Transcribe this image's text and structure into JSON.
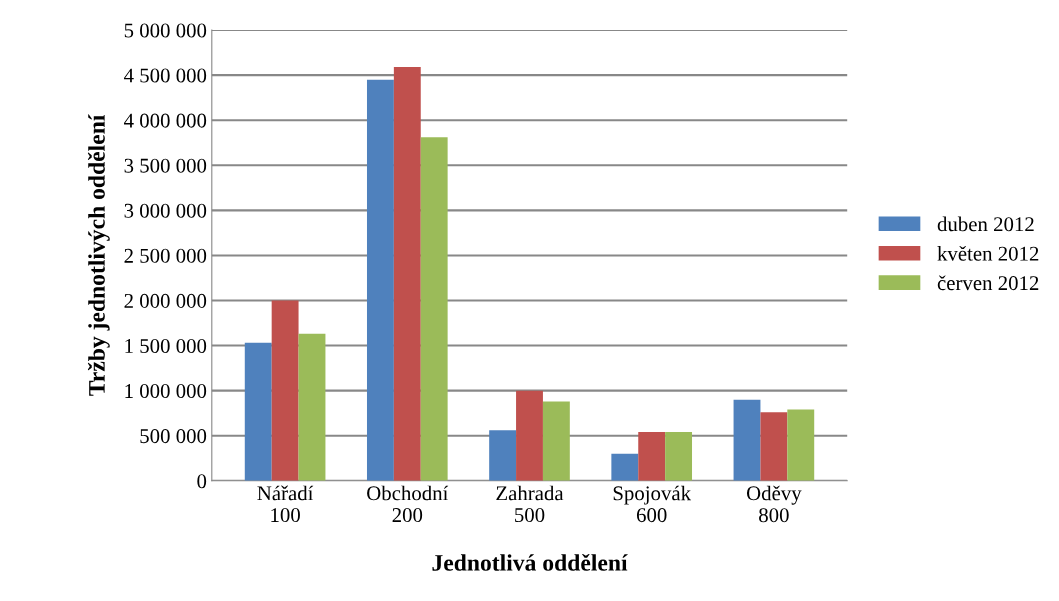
{
  "chart_data": {
    "type": "bar",
    "categories": [
      "Nářadí\n100",
      "Obchodní\n200",
      "Zahrada\n500",
      "Spojovák\n600",
      "Oděvy\n800"
    ],
    "series": [
      {
        "name": "duben 2012",
        "color": "#4f81bd",
        "values": [
          1530000,
          4450000,
          560000,
          300000,
          900000
        ]
      },
      {
        "name": "květen 2012",
        "color": "#c0504d",
        "values": [
          2000000,
          4590000,
          1000000,
          540000,
          760000
        ]
      },
      {
        "name": "červen 2012",
        "color": "#9bbb59",
        "values": [
          1630000,
          3810000,
          880000,
          540000,
          790000
        ]
      }
    ],
    "xlabel": "Jednotlivá oddělení",
    "ylabel": "Tržby jednotlivých oddělení",
    "ylim": [
      0,
      5000000
    ],
    "yticks": [
      {
        "value": 0,
        "label": "0"
      },
      {
        "value": 500000,
        "label": "500 000"
      },
      {
        "value": 1000000,
        "label": "1 000 000"
      },
      {
        "value": 1500000,
        "label": "1 500 000"
      },
      {
        "value": 2000000,
        "label": "2 000 000"
      },
      {
        "value": 2500000,
        "label": "2 500 000"
      },
      {
        "value": 3000000,
        "label": "3 000 000"
      },
      {
        "value": 3500000,
        "label": "3 500 000"
      },
      {
        "value": 4000000,
        "label": "4 000 000"
      },
      {
        "value": 4500000,
        "label": "4 500 000"
      },
      {
        "value": 5000000,
        "label": "5 000 000"
      }
    ],
    "grid": "y",
    "legend": "right"
  }
}
